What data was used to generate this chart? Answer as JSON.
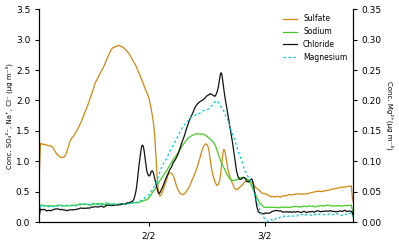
{
  "ylabel_left": "Conc. SO₄²⁻, Na⁺, Cl⁻ (μg m⁻³)",
  "ylabel_right": "Conc. Mg²⁺(μg m⁻³)",
  "ylim_left": [
    0,
    3.5
  ],
  "ylim_right": [
    0,
    0.35
  ],
  "yticks_left": [
    0,
    0.5,
    1.0,
    1.5,
    2.0,
    2.5,
    3.0,
    3.5
  ],
  "yticks_right": [
    0,
    0.05,
    0.1,
    0.15,
    0.2,
    0.25,
    0.3,
    0.35
  ],
  "xtick_positions": [
    0.35,
    0.72
  ],
  "xtick_labels": [
    "2/2",
    "3/2"
  ],
  "legend_entries": [
    "Sulfate",
    "Sodium",
    "Chloride",
    "Magnesium"
  ],
  "colors": {
    "sulfate": "#D4880C",
    "sodium": "#44CC22",
    "chloride": "#111111",
    "magnesium": "#00CCDD"
  },
  "background_color": "#ffffff"
}
